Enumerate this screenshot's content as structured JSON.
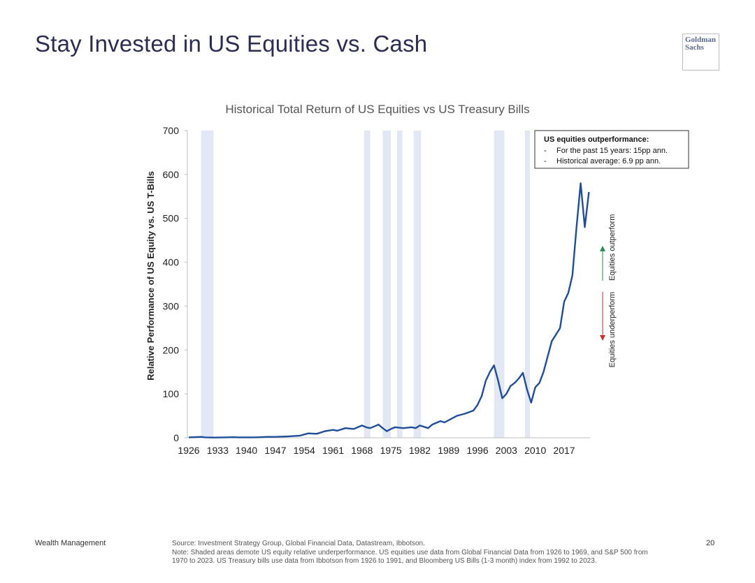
{
  "slide": {
    "title": "Stay Invested in US Equities vs. Cash",
    "logo": "Goldman\nSachs",
    "footer_left": "Wealth Management",
    "page_number": "20",
    "source_line": "Source: Investment Strategy Group, Global Financial Data, Datastream, Ibbotson.",
    "note_line": "Note: Shaded areas demote US equity relative underperformance. US equities use data from Global Financial Data from 1926 to 1969, and S&P 500 from 1970 to 2023. US Treasury bills use data from Ibbotson from 1926 to 1991, and Bloomberg US Bills (1-3 month) index from 1992 to 2023."
  },
  "colors": {
    "line": "#1f4e98",
    "shade": "#e1e8f4",
    "title": "#2b2d52",
    "up_arrow": "#2e8b57",
    "down_arrow": "#c8312b"
  },
  "chart_data": {
    "type": "line",
    "title": "Historical Total Return of US Equities vs US Treasury Bills",
    "ylabel": "Relative Performance of US Equity vs. US T-Bills",
    "xlabel": "",
    "xlim": [
      1926,
      2023
    ],
    "ylim": [
      0,
      700
    ],
    "y_ticks": [
      0,
      100,
      200,
      300,
      400,
      500,
      600,
      700
    ],
    "x_ticks": [
      1926,
      1933,
      1940,
      1947,
      1954,
      1961,
      1968,
      1975,
      1982,
      1989,
      1996,
      2003,
      2010,
      2017
    ],
    "grid": false,
    "series": [
      {
        "values": [
          [
            1926,
            1
          ],
          [
            1929,
            2
          ],
          [
            1930,
            1
          ],
          [
            1932,
            0.5
          ],
          [
            1935,
            1
          ],
          [
            1937,
            1.5
          ],
          [
            1938,
            1
          ],
          [
            1942,
            1
          ],
          [
            1945,
            2
          ],
          [
            1947,
            2
          ],
          [
            1950,
            3
          ],
          [
            1953,
            5
          ],
          [
            1955,
            10
          ],
          [
            1957,
            9
          ],
          [
            1959,
            15
          ],
          [
            1961,
            18
          ],
          [
            1962,
            16
          ],
          [
            1964,
            22
          ],
          [
            1966,
            20
          ],
          [
            1968,
            28
          ],
          [
            1969,
            24
          ],
          [
            1970,
            22
          ],
          [
            1971,
            26
          ],
          [
            1972,
            30
          ],
          [
            1973,
            22
          ],
          [
            1974,
            15
          ],
          [
            1975,
            20
          ],
          [
            1976,
            24
          ],
          [
            1978,
            22
          ],
          [
            1980,
            24
          ],
          [
            1981,
            22
          ],
          [
            1982,
            28
          ],
          [
            1984,
            22
          ],
          [
            1985,
            30
          ],
          [
            1987,
            38
          ],
          [
            1988,
            35
          ],
          [
            1990,
            45
          ],
          [
            1991,
            50
          ],
          [
            1993,
            55
          ],
          [
            1995,
            62
          ],
          [
            1996,
            75
          ],
          [
            1997,
            95
          ],
          [
            1998,
            130
          ],
          [
            1999,
            150
          ],
          [
            2000,
            165
          ],
          [
            2001,
            130
          ],
          [
            2002,
            90
          ],
          [
            2003,
            100
          ],
          [
            2004,
            118
          ],
          [
            2005,
            125
          ],
          [
            2006,
            135
          ],
          [
            2007,
            148
          ],
          [
            2008,
            110
          ],
          [
            2009,
            80
          ],
          [
            2010,
            115
          ],
          [
            2011,
            125
          ],
          [
            2012,
            150
          ],
          [
            2013,
            185
          ],
          [
            2014,
            220
          ],
          [
            2015,
            235
          ],
          [
            2016,
            250
          ],
          [
            2017,
            310
          ],
          [
            2018,
            330
          ],
          [
            2019,
            370
          ],
          [
            2020,
            480
          ],
          [
            2021,
            580
          ],
          [
            2022,
            480
          ],
          [
            2023,
            560
          ]
        ]
      }
    ],
    "shaded_periods": [
      [
        1929,
        1932
      ],
      [
        1968.5,
        1970
      ],
      [
        1973,
        1975
      ],
      [
        1976.5,
        1977.8
      ],
      [
        1980.5,
        1982.3
      ],
      [
        2000,
        2002.5
      ],
      [
        2007.5,
        2008.7
      ]
    ],
    "annotation_box": {
      "heading": "US equities outperformance:",
      "items": [
        "For the past 15 years: 15pp ann.",
        "Historical average: 6.9 pp ann."
      ]
    },
    "side_labels": {
      "up": "Equities outperform",
      "down": "Equities underperform"
    }
  }
}
